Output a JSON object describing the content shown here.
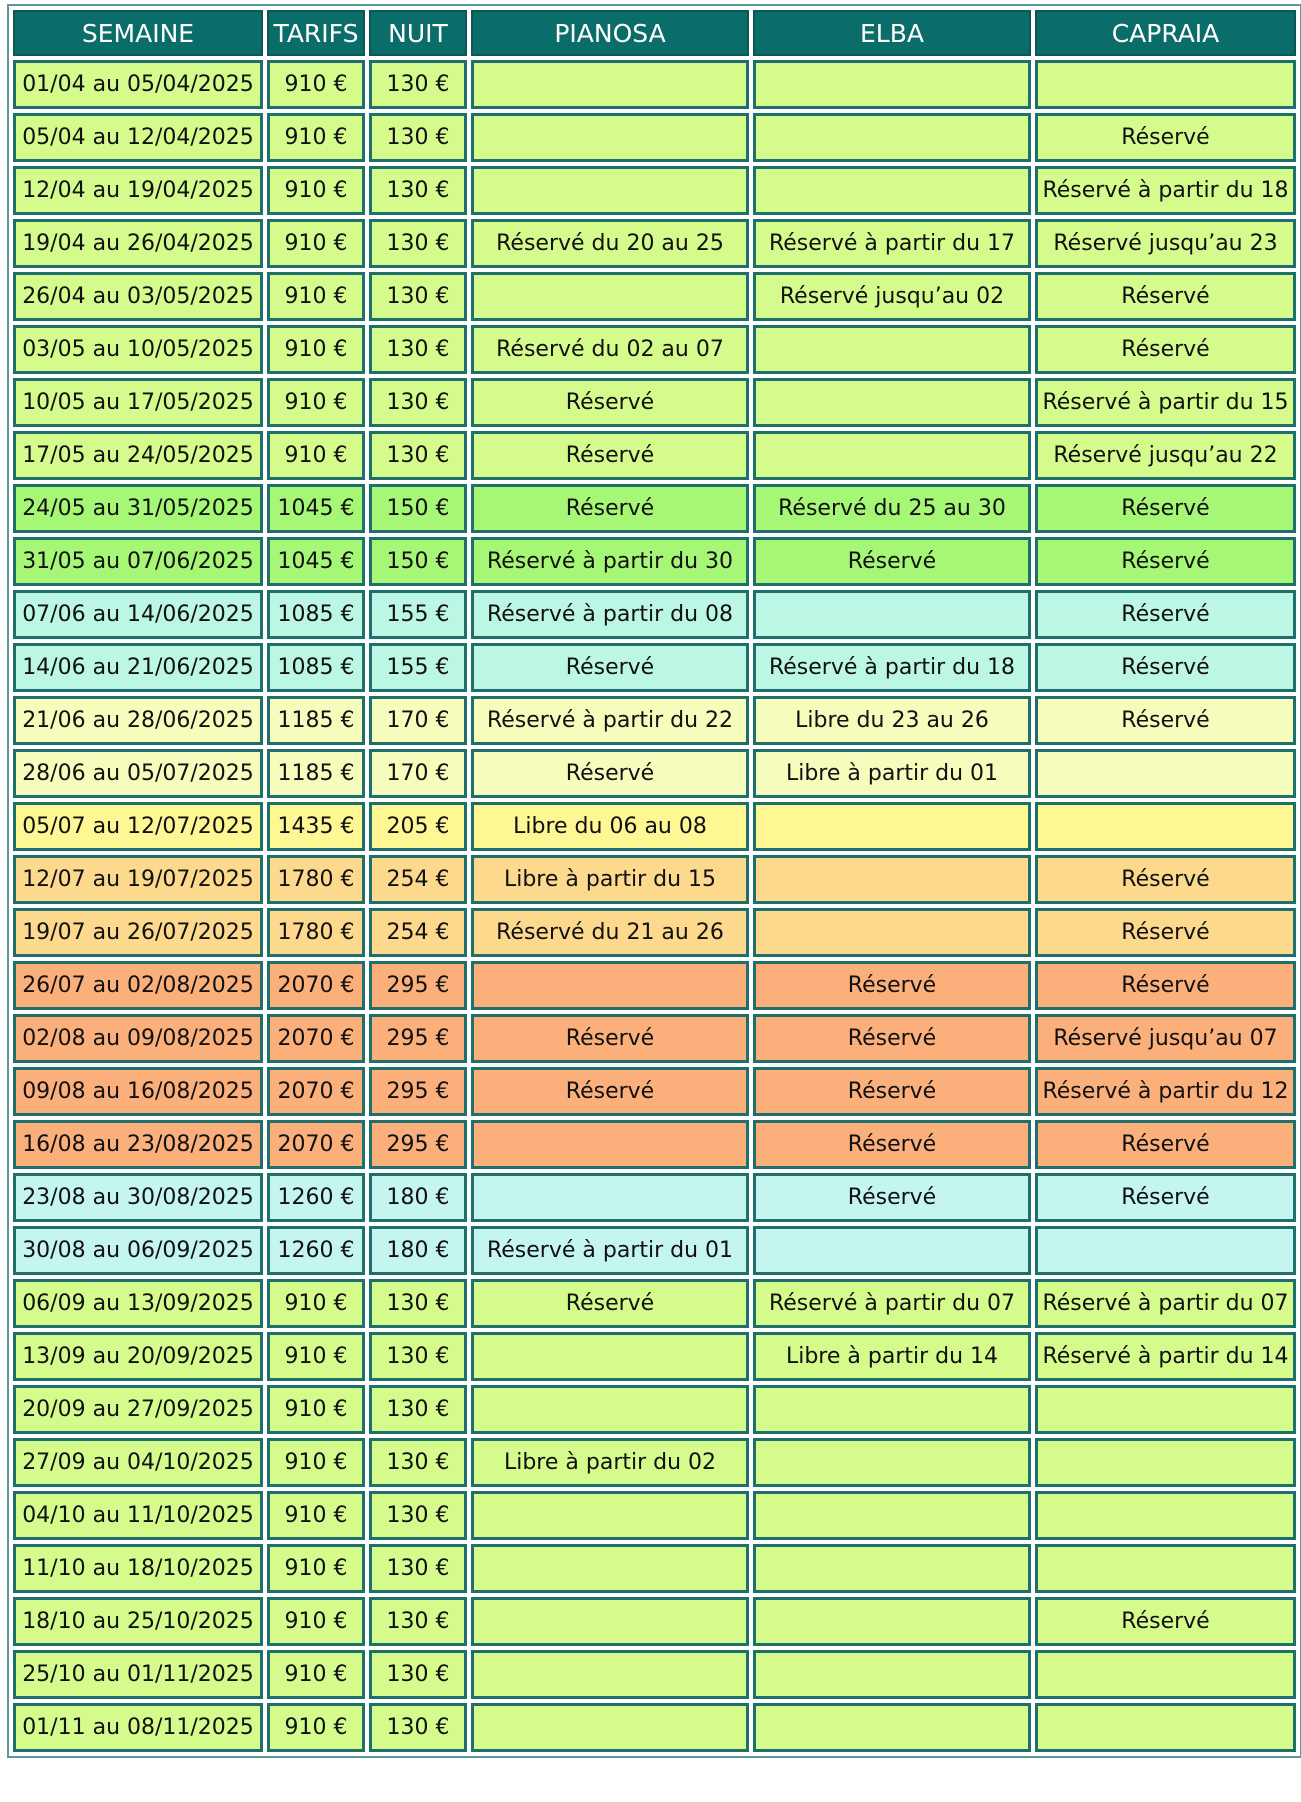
{
  "table": {
    "headers": [
      "SEMAINE",
      "TARIFS",
      "NUIT",
      "PIANOSA",
      "ELBA",
      "CAPRAIA"
    ],
    "rows": [
      {
        "semaine": "01/04 au 05/04/2025",
        "tarif": "910 €",
        "nuit": "130 €",
        "pianosa": "",
        "elba": "",
        "capraia": "",
        "color": "c-green"
      },
      {
        "semaine": "05/04 au 12/04/2025",
        "tarif": "910 €",
        "nuit": "130 €",
        "pianosa": "",
        "elba": "",
        "capraia": "Réservé",
        "color": "c-green"
      },
      {
        "semaine": "12/04 au 19/04/2025",
        "tarif": "910 €",
        "nuit": "130 €",
        "pianosa": "",
        "elba": "",
        "capraia": "Réservé à partir du 18",
        "color": "c-green"
      },
      {
        "semaine": "19/04 au 26/04/2025",
        "tarif": "910 €",
        "nuit": "130 €",
        "pianosa": "Réservé du 20 au 25",
        "elba": "Réservé à partir du 17",
        "capraia": "Réservé jusqu’au 23",
        "color": "c-green"
      },
      {
        "semaine": "26/04 au 03/05/2025",
        "tarif": "910 €",
        "nuit": "130 €",
        "pianosa": "",
        "elba": "Réservé jusqu’au 02",
        "capraia": "Réservé",
        "color": "c-green"
      },
      {
        "semaine": "03/05 au 10/05/2025",
        "tarif": "910 €",
        "nuit": "130 €",
        "pianosa": "Réservé du 02 au 07",
        "elba": "",
        "capraia": "Réservé",
        "color": "c-green"
      },
      {
        "semaine": "10/05 au 17/05/2025",
        "tarif": "910 €",
        "nuit": "130 €",
        "pianosa": "Réservé",
        "elba": "",
        "capraia": "Réservé à partir du 15",
        "color": "c-green"
      },
      {
        "semaine": "17/05 au 24/05/2025",
        "tarif": "910 €",
        "nuit": "130 €",
        "pianosa": "Réservé",
        "elba": "",
        "capraia": "Réservé jusqu’au 22",
        "color": "c-green"
      },
      {
        "semaine": "24/05 au 31/05/2025",
        "tarif": "1045 €",
        "nuit": "150 €",
        "pianosa": "Réservé",
        "elba": "Réservé du 25 au 30",
        "capraia": "Réservé",
        "color": "c-brgreen"
      },
      {
        "semaine": "31/05 au 07/06/2025",
        "tarif": "1045 €",
        "nuit": "150 €",
        "pianosa": "Réservé à partir du 30",
        "elba": "Réservé",
        "capraia": "Réservé",
        "color": "c-brgreen"
      },
      {
        "semaine": "07/06 au 14/06/2025",
        "tarif": "1085 €",
        "nuit": "155 €",
        "pianosa": "Réservé à partir du 08",
        "elba": "",
        "capraia": "Réservé",
        "color": "c-cyan"
      },
      {
        "semaine": "14/06 au 21/06/2025",
        "tarif": "1085 €",
        "nuit": "155 €",
        "pianosa": "Réservé",
        "elba": "Réservé à partir du 18",
        "capraia": "Réservé",
        "color": "c-cyan"
      },
      {
        "semaine": "21/06 au 28/06/2025",
        "tarif": "1185 €",
        "nuit": "170 €",
        "pianosa": "Réservé à partir du 22",
        "elba": "Libre du 23 au 26",
        "capraia": "Réservé",
        "color": "c-ltyel"
      },
      {
        "semaine": "28/06 au 05/07/2025",
        "tarif": "1185 €",
        "nuit": "170 €",
        "pianosa": "Réservé",
        "elba": "Libre à partir du 01",
        "capraia": "",
        "color": "c-ltyel"
      },
      {
        "semaine": "05/07 au 12/07/2025",
        "tarif": "1435 €",
        "nuit": "205 €",
        "pianosa": "Libre du 06 au 08",
        "elba": "",
        "capraia": "",
        "color": "c-yellow"
      },
      {
        "semaine": "12/07 au 19/07/2025",
        "tarif": "1780 €",
        "nuit": "254 €",
        "pianosa": "Libre à partir du 15",
        "elba": "",
        "capraia": "Réservé",
        "color": "c-orange"
      },
      {
        "semaine": "19/07 au 26/07/2025",
        "tarif": "1780 €",
        "nuit": "254 €",
        "pianosa": "Réservé du 21 au 26",
        "elba": "",
        "capraia": "Réservé",
        "color": "c-orange"
      },
      {
        "semaine": "26/07 au 02/08/2025",
        "tarif": "2070 €",
        "nuit": "295 €",
        "pianosa": "",
        "elba": "Réservé",
        "capraia": "Réservé",
        "color": "c-salmon"
      },
      {
        "semaine": "02/08 au 09/08/2025",
        "tarif": "2070 €",
        "nuit": "295 €",
        "pianosa": "Réservé",
        "elba": "Réservé",
        "capraia": "Réservé jusqu’au 07",
        "color": "c-salmon"
      },
      {
        "semaine": "09/08 au 16/08/2025",
        "tarif": "2070 €",
        "nuit": "295 €",
        "pianosa": "Réservé",
        "elba": "Réservé",
        "capraia": "Réservé à partir du 12",
        "color": "c-salmon"
      },
      {
        "semaine": "16/08 au 23/08/2025",
        "tarif": "2070 €",
        "nuit": "295 €",
        "pianosa": "",
        "elba": "Réservé",
        "capraia": "Réservé",
        "color": "c-salmon"
      },
      {
        "semaine": "23/08 au 30/08/2025",
        "tarif": "1260 €",
        "nuit": "180 €",
        "pianosa": "",
        "elba": "Réservé",
        "capraia": "Réservé",
        "color": "c-ltcyan"
      },
      {
        "semaine": "30/08 au 06/09/2025",
        "tarif": "1260 €",
        "nuit": "180 €",
        "pianosa": "Réservé à partir du 01",
        "elba": "",
        "capraia": "",
        "color": "c-ltcyan"
      },
      {
        "semaine": "06/09 au 13/09/2025",
        "tarif": "910 €",
        "nuit": "130 €",
        "pianosa": "Réservé",
        "elba": "Réservé à partir du 07",
        "capraia": "Réservé à partir du 07",
        "color": "c-green"
      },
      {
        "semaine": "13/09 au 20/09/2025",
        "tarif": "910 €",
        "nuit": "130 €",
        "pianosa": "",
        "elba": "Libre à partir du 14",
        "capraia": "Réservé à partir du 14",
        "color": "c-green"
      },
      {
        "semaine": "20/09 au 27/09/2025",
        "tarif": "910 €",
        "nuit": "130 €",
        "pianosa": "",
        "elba": "",
        "capraia": "",
        "color": "c-green"
      },
      {
        "semaine": "27/09 au 04/10/2025",
        "tarif": "910 €",
        "nuit": "130 €",
        "pianosa": "Libre à partir du 02",
        "elba": "",
        "capraia": "",
        "color": "c-green"
      },
      {
        "semaine": "04/10 au 11/10/2025",
        "tarif": "910 €",
        "nuit": "130 €",
        "pianosa": "",
        "elba": "",
        "capraia": "",
        "color": "c-green"
      },
      {
        "semaine": "11/10 au 18/10/2025",
        "tarif": "910 €",
        "nuit": "130 €",
        "pianosa": "",
        "elba": "",
        "capraia": "",
        "color": "c-green"
      },
      {
        "semaine": "18/10 au 25/10/2025",
        "tarif": "910 €",
        "nuit": "130 €",
        "pianosa": "",
        "elba": "",
        "capraia": "Réservé",
        "color": "c-green"
      },
      {
        "semaine": "25/10 au 01/11/2025",
        "tarif": "910 €",
        "nuit": "130 €",
        "pianosa": "",
        "elba": "",
        "capraia": "",
        "color": "c-green"
      },
      {
        "semaine": "01/11 au 08/11/2025",
        "tarif": "910 €",
        "nuit": "130 €",
        "pianosa": "",
        "elba": "",
        "capraia": "",
        "color": "c-green"
      }
    ]
  }
}
